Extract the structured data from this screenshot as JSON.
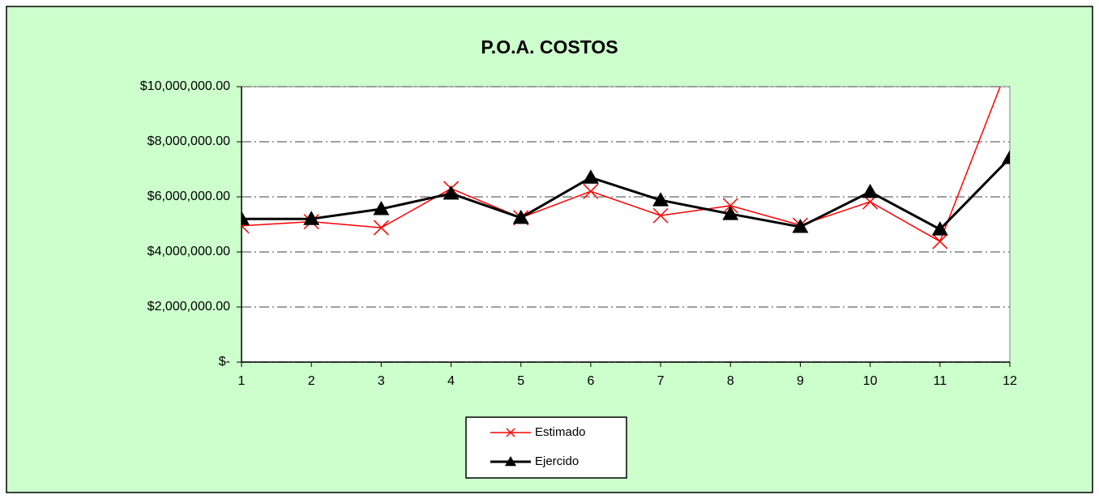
{
  "chart_data": {
    "type": "line",
    "title": "P.O.A. COSTOS",
    "categories": [
      "1",
      "2",
      "3",
      "4",
      "5",
      "6",
      "7",
      "8",
      "9",
      "10",
      "11",
      "12"
    ],
    "series": [
      {
        "name": "Estimado",
        "color": "#ff0000",
        "marker": "x",
        "line_width": 1.5,
        "values": [
          4950000,
          5100000,
          4880000,
          6300000,
          5240000,
          6200000,
          5320000,
          5680000,
          4970000,
          5820000,
          4380000,
          10900000
        ]
      },
      {
        "name": "Ejercido",
        "color": "#000000",
        "marker": "triangle",
        "line_width": 3,
        "values": [
          5200000,
          5200000,
          5560000,
          6120000,
          5240000,
          6700000,
          5880000,
          5380000,
          4910000,
          6180000,
          4820000,
          7410000
        ]
      }
    ],
    "ylim": [
      0,
      10000000
    ],
    "yticks": [
      {
        "value": 0,
        "label": "$-"
      },
      {
        "value": 2000000,
        "label": "$2,000,000.00"
      },
      {
        "value": 4000000,
        "label": "$4,000,000.00"
      },
      {
        "value": 6000000,
        "label": "$6,000,000.00"
      },
      {
        "value": 8000000,
        "label": "$8,000,000.00"
      },
      {
        "value": 10000000,
        "label": "$10,000,000.00"
      }
    ],
    "grid": true,
    "legend": "bottom",
    "background": "#ccffcc"
  }
}
